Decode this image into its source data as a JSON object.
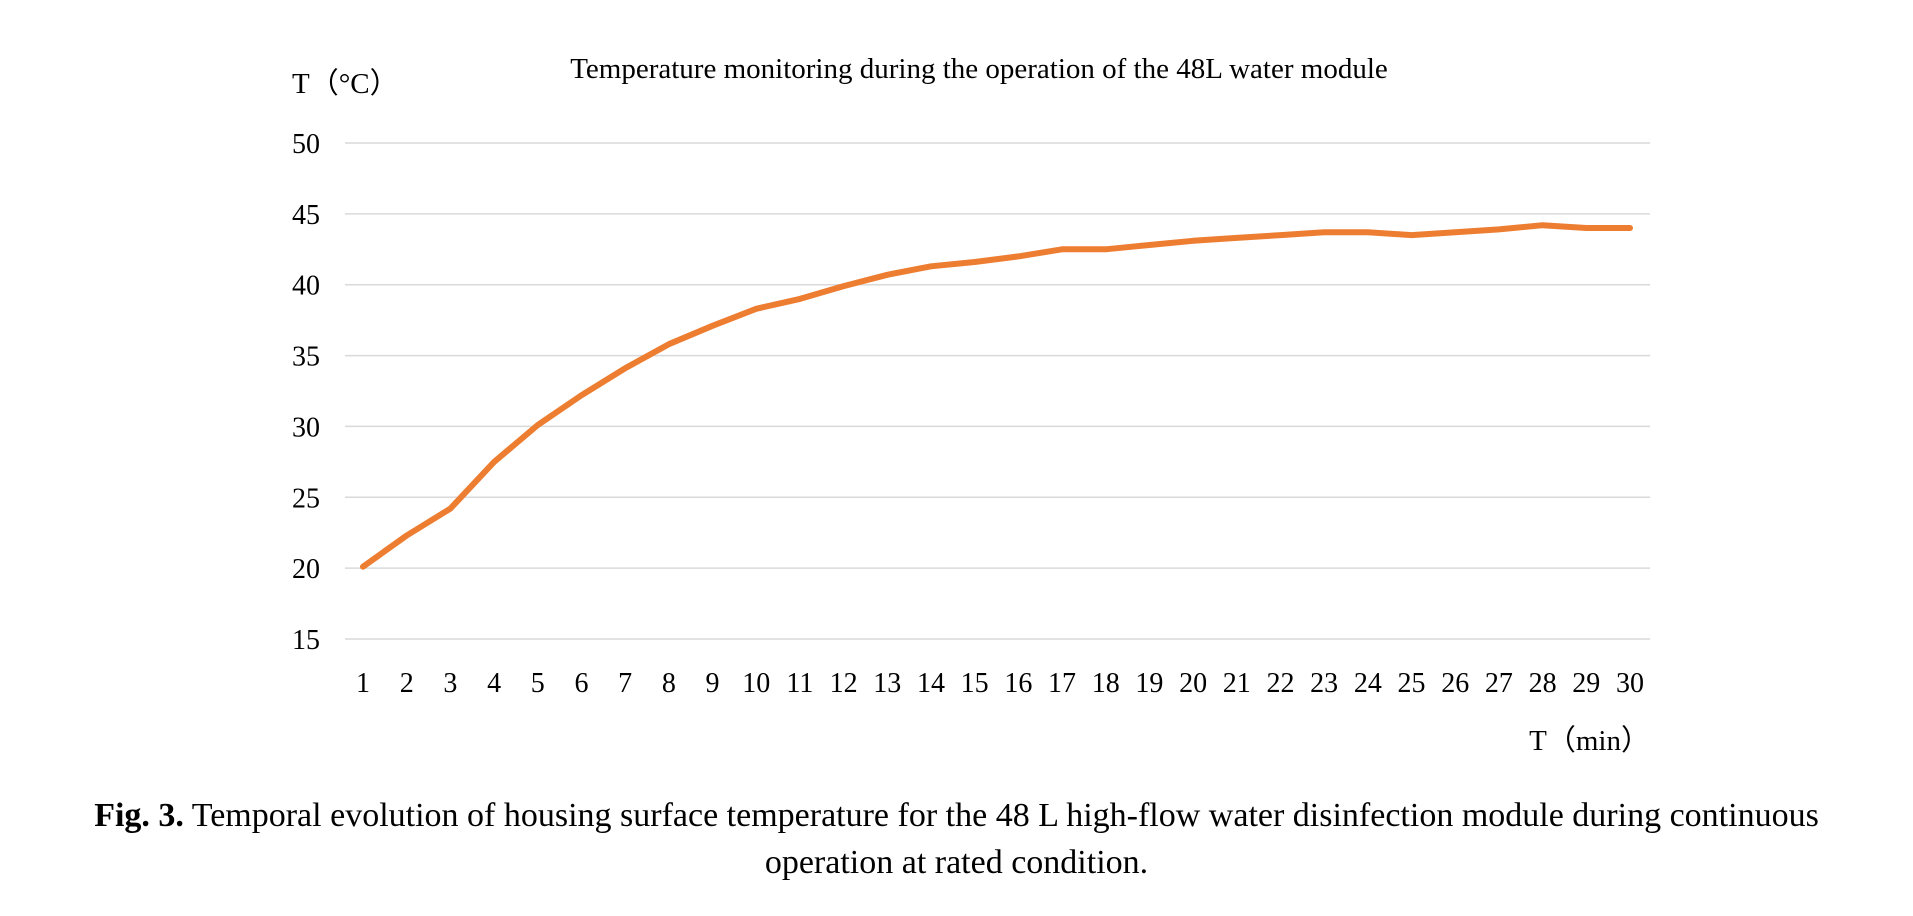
{
  "chart_data": {
    "type": "line",
    "title": "Temperature monitoring during the operation of the 48L water module",
    "ylabel": "T（°C）",
    "xlabel": "T（min）",
    "ylim": [
      15,
      50
    ],
    "yticks": [
      15,
      20,
      25,
      30,
      35,
      40,
      45,
      50
    ],
    "grid": true,
    "legend": "none",
    "x": [
      1,
      2,
      3,
      4,
      5,
      6,
      7,
      8,
      9,
      10,
      11,
      12,
      13,
      14,
      15,
      16,
      17,
      18,
      19,
      20,
      21,
      22,
      23,
      24,
      25,
      26,
      27,
      28,
      29,
      30
    ],
    "series": [
      {
        "values": [
          20.1,
          22.3,
          24.2,
          27.5,
          30.1,
          32.2,
          34.1,
          35.8,
          37.1,
          38.3,
          39.0,
          39.9,
          40.7,
          41.3,
          41.6,
          42.0,
          42.5,
          42.5,
          42.8,
          43.1,
          43.3,
          43.5,
          43.7,
          43.7,
          43.5,
          43.7,
          43.9,
          44.2,
          44.0,
          44.0
        ],
        "color": "#ed7d31"
      }
    ]
  },
  "caption": {
    "label": "Fig. 3.",
    "text": " Temporal evolution of housing surface temperature for the 48 L high-flow water disinfection module during continuous operation at rated condition."
  }
}
